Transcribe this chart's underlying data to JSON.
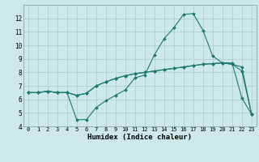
{
  "xlabel": "Humidex (Indice chaleur)",
  "bg_color": "#cce8e8",
  "grid_color": "#aacccc",
  "line_color": "#1a7a6e",
  "xlim": [
    -0.5,
    23.5
  ],
  "ylim": [
    4,
    13
  ],
  "yticks": [
    4,
    5,
    6,
    7,
    8,
    9,
    10,
    11,
    12
  ],
  "xticks": [
    0,
    1,
    2,
    3,
    4,
    5,
    6,
    7,
    8,
    9,
    10,
    11,
    12,
    13,
    14,
    15,
    16,
    17,
    18,
    19,
    20,
    21,
    22,
    23
  ],
  "series": [
    [
      6.5,
      6.5,
      6.6,
      6.5,
      6.5,
      4.5,
      4.5,
      5.4,
      5.9,
      6.3,
      6.7,
      7.6,
      7.8,
      9.3,
      10.5,
      11.3,
      12.3,
      12.35,
      11.1,
      9.2,
      8.7,
      8.7,
      6.1,
      4.9
    ],
    [
      6.5,
      6.5,
      6.6,
      6.5,
      6.5,
      6.3,
      6.45,
      7.0,
      7.3,
      7.55,
      7.75,
      7.9,
      8.0,
      8.1,
      8.2,
      8.3,
      8.4,
      8.5,
      8.6,
      8.65,
      8.7,
      8.6,
      8.4,
      4.9
    ],
    [
      6.5,
      6.5,
      6.6,
      6.5,
      6.5,
      6.3,
      6.45,
      7.0,
      7.3,
      7.55,
      7.75,
      7.9,
      8.0,
      8.1,
      8.2,
      8.3,
      8.4,
      8.5,
      8.6,
      8.65,
      8.7,
      8.6,
      8.1,
      4.9
    ]
  ],
  "markersize": 2.0,
  "linewidth": 0.8
}
